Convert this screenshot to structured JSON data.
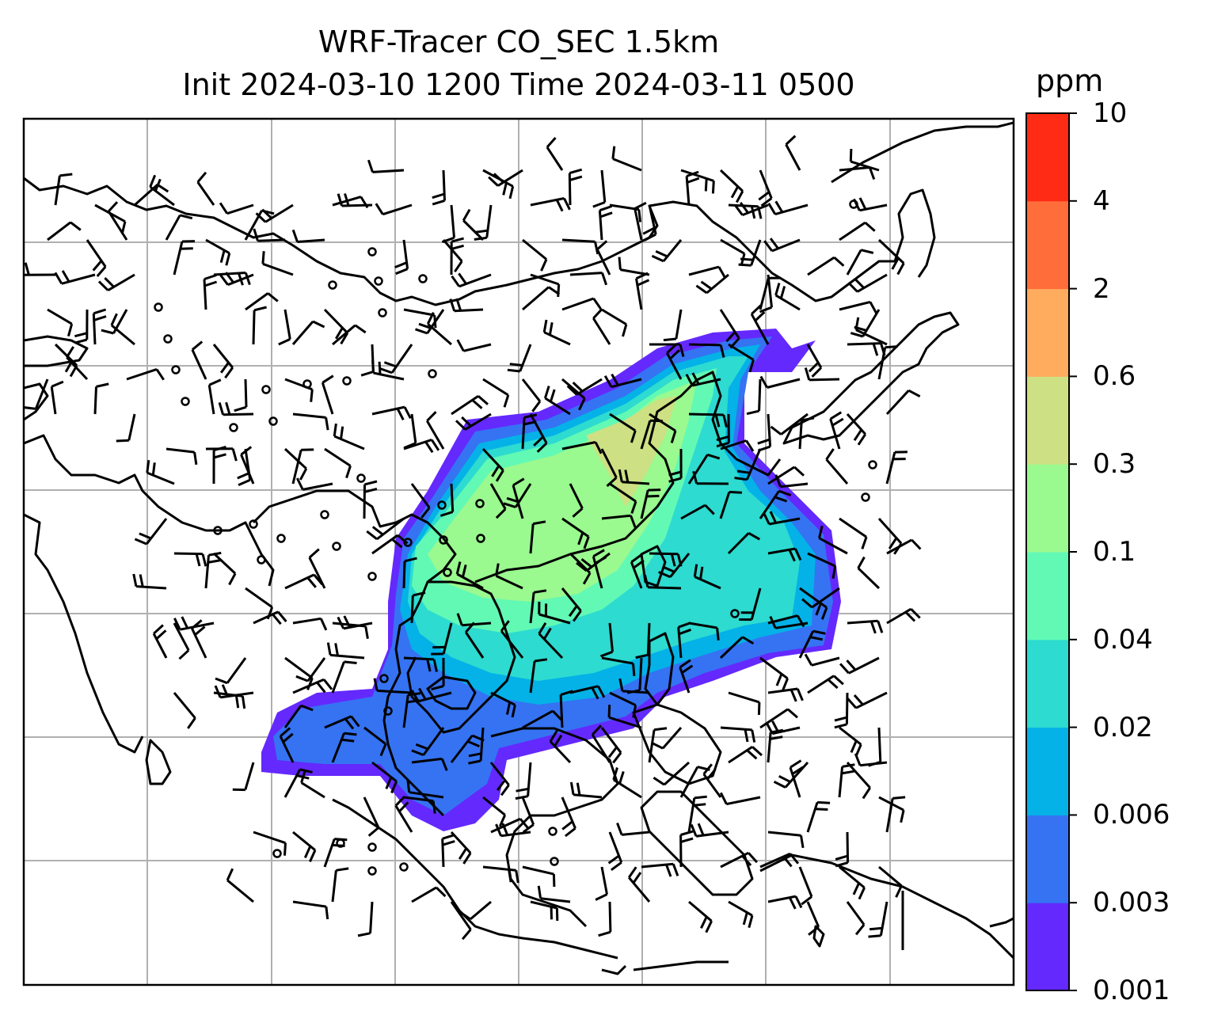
{
  "title_line1": "WRF-Tracer CO_SEC 1.5km",
  "title_line2": "Init 2024-03-10 1200 Time 2024-03-11 0500",
  "colorbar": {
    "unit": "ppm",
    "levels": [
      "0.001",
      "0.003",
      "0.006",
      "0.02",
      "0.04",
      "0.1",
      "0.3",
      "0.6",
      "2",
      "4",
      "10"
    ],
    "colors": [
      "#6429fd",
      "#3573f3",
      "#04b2e7",
      "#2ddbd0",
      "#62f9b5",
      "#9af98f",
      "#cde083",
      "#ffac5e",
      "#ff6d3a",
      "#ff2b14"
    ]
  },
  "colors": {
    "frame": "#000000",
    "grid": "#b0b0b0",
    "coast": "#000000",
    "barb": "#000000"
  }
}
